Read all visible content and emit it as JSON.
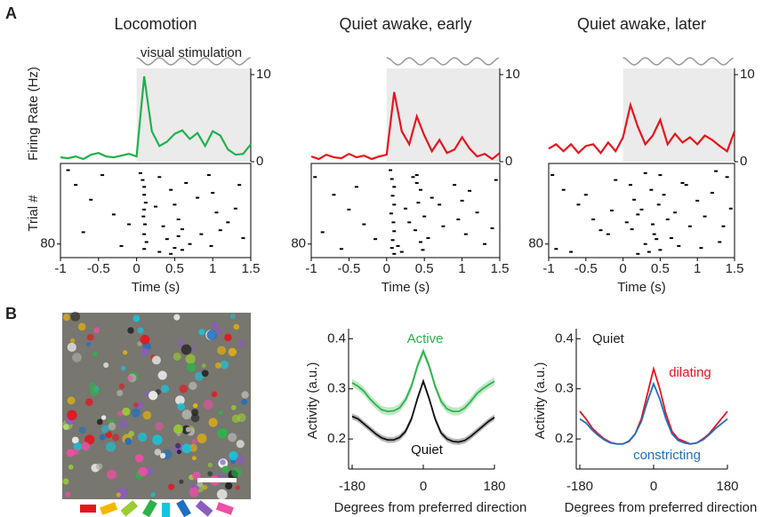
{
  "panel_labels": [
    "A",
    "B"
  ],
  "chart_data": [
    {
      "type": "psth_raster",
      "title": "Locomotion",
      "annotation": "visual stimulation",
      "y_label": "Firing Rate (Hz)",
      "x_label": "Time (s)",
      "stimulus_window": [
        0,
        1.5
      ],
      "xlim": [
        -1,
        1.5
      ],
      "xticks": [
        -1,
        -0.5,
        0,
        0.5,
        1,
        1.5
      ],
      "ylim": [
        0,
        10
      ],
      "yticks": [
        0,
        10
      ],
      "x": [
        -1,
        -0.9,
        -0.8,
        -0.7,
        -0.6,
        -0.5,
        -0.4,
        -0.3,
        -0.2,
        -0.1,
        0,
        0.1,
        0.2,
        0.3,
        0.4,
        0.5,
        0.6,
        0.7,
        0.8,
        0.9,
        1,
        1.1,
        1.2,
        1.3,
        1.4,
        1.5
      ],
      "series": [
        {
          "color": "#1fb24a",
          "values": [
            0.5,
            0.4,
            0.6,
            0.3,
            0.8,
            1.0,
            0.6,
            0.5,
            0.7,
            0.9,
            0.6,
            9.8,
            3.5,
            1.8,
            2.3,
            3.2,
            3.6,
            2.6,
            3.3,
            1.8,
            3.5,
            3.0,
            1.4,
            0.8,
            0.9,
            2.0
          ]
        }
      ],
      "raster": {
        "y_label": "Trial #",
        "ylim": [
          0,
          92
        ],
        "yticks": [
          80
        ],
        "x": [
          -0.9,
          -0.8,
          -0.6,
          -0.45,
          -0.3,
          -0.1,
          0.05,
          0.08,
          0.1,
          0.1,
          0.12,
          0.1,
          0.09,
          0.11,
          0.1,
          0.13,
          0.1,
          0.3,
          0.45,
          0.5,
          0.55,
          0.6,
          0.4,
          0.7,
          0.5,
          0.65,
          0.8,
          0.3,
          0.55,
          0.95,
          1.0,
          1.05,
          1.1,
          0.98,
          1.2,
          1.35,
          1.4,
          -0.7,
          -0.2,
          0.25,
          0.35,
          0.6,
          1.3,
          0.85,
          0.45
        ],
        "y": [
          5,
          20,
          35,
          10,
          50,
          60,
          8,
          15,
          22,
          30,
          38,
          45,
          52,
          60,
          70,
          78,
          85,
          12,
          25,
          40,
          55,
          65,
          75,
          80,
          84,
          18,
          33,
          88,
          72,
          10,
          28,
          48,
          66,
          82,
          58,
          20,
          74,
          68,
          82,
          42,
          62,
          86,
          44,
          70,
          90
        ]
      }
    },
    {
      "type": "psth_raster",
      "title": "Quiet awake, early",
      "x_label": "Time (s)",
      "stimulus_window": [
        0,
        1.5
      ],
      "xlim": [
        -1,
        1.5
      ],
      "xticks": [
        -1,
        -0.5,
        0,
        0.5,
        1,
        1.5
      ],
      "ylim": [
        0,
        10
      ],
      "yticks": [
        0,
        10
      ],
      "x": [
        -1,
        -0.9,
        -0.8,
        -0.7,
        -0.6,
        -0.5,
        -0.4,
        -0.3,
        -0.2,
        -0.1,
        0,
        0.1,
        0.2,
        0.3,
        0.4,
        0.5,
        0.6,
        0.7,
        0.8,
        0.9,
        1,
        1.1,
        1.2,
        1.3,
        1.4,
        1.5
      ],
      "series": [
        {
          "color": "#e8141c",
          "values": [
            0.6,
            0.3,
            0.8,
            0.5,
            0.4,
            0.9,
            0.5,
            0.7,
            0.3,
            0.6,
            0.8,
            8.0,
            3.5,
            2.0,
            5.2,
            3.0,
            1.2,
            2.5,
            1.0,
            1.4,
            2.8,
            1.5,
            0.6,
            0.9,
            0.3,
            1.0
          ]
        }
      ],
      "raster": {
        "ylim": [
          0,
          92
        ],
        "yticks": [
          80
        ],
        "x": [
          -0.95,
          -0.7,
          -0.5,
          -0.3,
          -0.15,
          -0.6,
          0.05,
          0.07,
          0.1,
          0.08,
          0.1,
          0.06,
          0.09,
          0.1,
          0.08,
          0.07,
          0.1,
          0.4,
          0.45,
          0.42,
          0.5,
          0.38,
          0.45,
          0.48,
          0.4,
          0.25,
          0.9,
          1.0,
          0.95,
          1.05,
          0.75,
          0.6,
          1.2,
          1.3,
          1.45,
          -0.85,
          -0.4,
          0.2,
          0.3,
          0.55,
          0.7,
          1.1,
          1.4,
          0.15,
          0.35
        ],
        "y": [
          12,
          30,
          45,
          60,
          75,
          85,
          5,
          14,
          22,
          31,
          40,
          49,
          58,
          67,
          76,
          84,
          90,
          10,
          25,
          38,
          52,
          66,
          78,
          86,
          18,
          44,
          20,
          36,
          55,
          70,
          62,
          33,
          48,
          80,
          15,
          68,
          22,
          88,
          58,
          74,
          40,
          26,
          64,
          82,
          12
        ]
      }
    },
    {
      "type": "psth_raster",
      "title": "Quiet awake, later",
      "x_label": "Time (s)",
      "stimulus_window": [
        0,
        1.5
      ],
      "xlim": [
        -1,
        1.5
      ],
      "xticks": [
        -1,
        -0.5,
        0,
        0.5,
        1,
        1.5
      ],
      "ylim": [
        0,
        10
      ],
      "yticks": [
        0,
        10
      ],
      "x": [
        -1,
        -0.9,
        -0.8,
        -0.7,
        -0.6,
        -0.5,
        -0.4,
        -0.3,
        -0.2,
        -0.1,
        0,
        0.1,
        0.2,
        0.3,
        0.4,
        0.5,
        0.6,
        0.7,
        0.8,
        0.9,
        1,
        1.1,
        1.2,
        1.3,
        1.4,
        1.5
      ],
      "series": [
        {
          "color": "#e8141c",
          "values": [
            1.5,
            2.0,
            1.2,
            2.0,
            1.0,
            1.8,
            2.0,
            1.0,
            2.2,
            1.2,
            2.8,
            6.5,
            4.0,
            2.0,
            3.0,
            4.8,
            2.0,
            3.2,
            2.2,
            2.8,
            2.0,
            3.0,
            2.5,
            1.8,
            1.2,
            3.5
          ]
        }
      ],
      "raster": {
        "ylim": [
          0,
          92
        ],
        "yticks": [
          80
        ],
        "x": [
          -0.95,
          -0.8,
          -0.6,
          -0.4,
          -0.2,
          -0.9,
          -0.5,
          -0.1,
          0.1,
          0.15,
          0.2,
          0.12,
          0.3,
          0.25,
          0.4,
          0.45,
          0.5,
          0.55,
          0.35,
          0.6,
          0.48,
          0.42,
          0.38,
          0.7,
          0.8,
          0.75,
          0.9,
          1.0,
          1.1,
          1.2,
          1.3,
          1.4,
          1.45,
          0.05,
          -0.3,
          -0.7,
          0.65,
          0.85,
          1.05,
          1.25,
          0.2,
          0.5,
          0.3,
          -0.15,
          1.35
        ],
        "y": [
          10,
          25,
          40,
          55,
          70,
          85,
          30,
          15,
          20,
          35,
          50,
          65,
          80,
          45,
          60,
          75,
          10,
          30,
          88,
          55,
          40,
          70,
          25,
          48,
          18,
          82,
          62,
          36,
          52,
          28,
          78,
          12,
          44,
          58,
          66,
          88,
          74,
          20,
          84,
          6,
          90,
          86,
          8,
          46,
          62
        ]
      }
    },
    {
      "type": "tuning",
      "y_label": "Activity (a.u.)",
      "x_label": "Degrees from preferred direction",
      "xlim": [
        -180,
        180
      ],
      "xticks": [
        -180,
        0,
        180
      ],
      "ylim": [
        0.14,
        0.42
      ],
      "yticks": [
        0.2,
        0.3,
        0.4
      ],
      "x": [
        -180,
        -165,
        -150,
        -135,
        -120,
        -105,
        -90,
        -75,
        -60,
        -45,
        -30,
        -15,
        0,
        15,
        30,
        45,
        60,
        75,
        90,
        105,
        120,
        135,
        150,
        165,
        180
      ],
      "series": [
        {
          "name": "Active",
          "color": "#2db34a",
          "error": 0.008,
          "values": [
            0.312,
            0.305,
            0.295,
            0.28,
            0.268,
            0.258,
            0.255,
            0.256,
            0.262,
            0.278,
            0.305,
            0.345,
            0.375,
            0.345,
            0.305,
            0.275,
            0.26,
            0.255,
            0.255,
            0.262,
            0.275,
            0.29,
            0.3,
            0.308,
            0.315
          ]
        },
        {
          "name": "Quiet",
          "color": "#111111",
          "error": 0.006,
          "values": [
            0.245,
            0.24,
            0.23,
            0.22,
            0.21,
            0.202,
            0.198,
            0.198,
            0.203,
            0.215,
            0.24,
            0.28,
            0.315,
            0.28,
            0.24,
            0.212,
            0.2,
            0.195,
            0.194,
            0.197,
            0.205,
            0.215,
            0.225,
            0.235,
            0.243
          ]
        }
      ]
    },
    {
      "type": "tuning",
      "title": "Quiet",
      "y_label": "Activity (a.u.)",
      "x_label": "Degrees from preferred direction",
      "xlim": [
        -180,
        180
      ],
      "xticks": [
        -180,
        0,
        180
      ],
      "ylim": [
        0.14,
        0.42
      ],
      "yticks": [
        0.2,
        0.3,
        0.4
      ],
      "x": [
        -180,
        -165,
        -150,
        -135,
        -120,
        -105,
        -90,
        -75,
        -60,
        -45,
        -30,
        -15,
        0,
        15,
        30,
        45,
        60,
        75,
        90,
        105,
        120,
        135,
        150,
        165,
        180
      ],
      "series": [
        {
          "name": "dilating",
          "color": "#e8141c",
          "values": [
            0.255,
            0.24,
            0.222,
            0.21,
            0.2,
            0.193,
            0.19,
            0.19,
            0.195,
            0.21,
            0.24,
            0.29,
            0.34,
            0.3,
            0.25,
            0.215,
            0.2,
            0.195,
            0.19,
            0.192,
            0.2,
            0.21,
            0.225,
            0.24,
            0.255
          ]
        },
        {
          "name": "constricting",
          "color": "#1f6fc0",
          "values": [
            0.24,
            0.232,
            0.218,
            0.207,
            0.198,
            0.192,
            0.19,
            0.19,
            0.196,
            0.21,
            0.235,
            0.275,
            0.31,
            0.28,
            0.24,
            0.21,
            0.197,
            0.192,
            0.19,
            0.192,
            0.198,
            0.208,
            0.22,
            0.23,
            0.24
          ]
        }
      ]
    }
  ]
}
